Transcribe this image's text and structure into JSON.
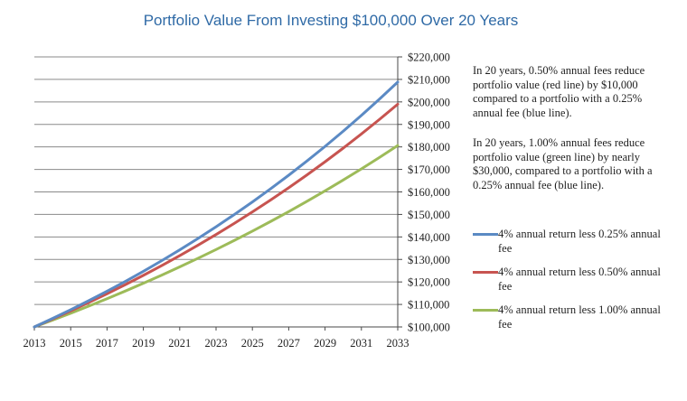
{
  "chart_data": {
    "type": "line",
    "title": "Portfolio Value From Investing $100,000 Over 20 Years",
    "xlabel": "",
    "ylabel": "",
    "x": [
      2013,
      2014,
      2015,
      2016,
      2017,
      2018,
      2019,
      2020,
      2021,
      2022,
      2023,
      2024,
      2025,
      2026,
      2027,
      2028,
      2029,
      2030,
      2031,
      2032,
      2033
    ],
    "x_tick_labels": [
      "2013",
      "2015",
      "2017",
      "2019",
      "2021",
      "2023",
      "2025",
      "2027",
      "2029",
      "2031",
      "2033"
    ],
    "y_tick_labels": [
      "$220,000",
      "$210,000",
      "$200,000",
      "$190,000",
      "$180,000",
      "$170,000",
      "$160,000",
      "$150,000",
      "$140,000",
      "$130,000",
      "$120,000",
      "$110,000",
      "$100,000"
    ],
    "xlim": [
      2013,
      2033
    ],
    "ylim": [
      100000,
      220000
    ],
    "grid": "horizontal",
    "legend_position": "right",
    "series": [
      {
        "name": "4% annual return less 0.25% annual fee",
        "color": "#5b8ac4",
        "values": [
          100000,
          103750,
          107641,
          111677,
          115865,
          120210,
          124718,
          129395,
          134247,
          139282,
          144505,
          149924,
          155546,
          161379,
          167430,
          173709,
          180223,
          186982,
          193993,
          201268,
          208815
        ]
      },
      {
        "name": "4% annual return less 0.50% annual fee",
        "color": "#c75450",
        "values": [
          100000,
          103500,
          107123,
          110872,
          114752,
          118769,
          122926,
          127228,
          131681,
          136290,
          141060,
          145997,
          151107,
          156396,
          161869,
          167535,
          173399,
          179468,
          185749,
          192250,
          198979
        ]
      },
      {
        "name": "4% annual return less 1.00% annual fee",
        "color": "#9dbb59",
        "values": [
          100000,
          103000,
          106090,
          109273,
          112551,
          115927,
          119405,
          122987,
          126677,
          130477,
          134392,
          138423,
          142576,
          146853,
          151259,
          155797,
          160471,
          165285,
          170243,
          175351,
          180611
        ]
      }
    ],
    "annotations": [
      "In 20 years, 0.50% annual fees reduce portfolio value (red line) by $10,000 compared to a portfolio with a 0.25% annual fee (blue line).",
      "In 20 years, 1.00% annual fees reduce portfolio value (green line) by nearly $30,000, compared to a portfolio with a 0.25% annual fee (blue line)."
    ]
  }
}
